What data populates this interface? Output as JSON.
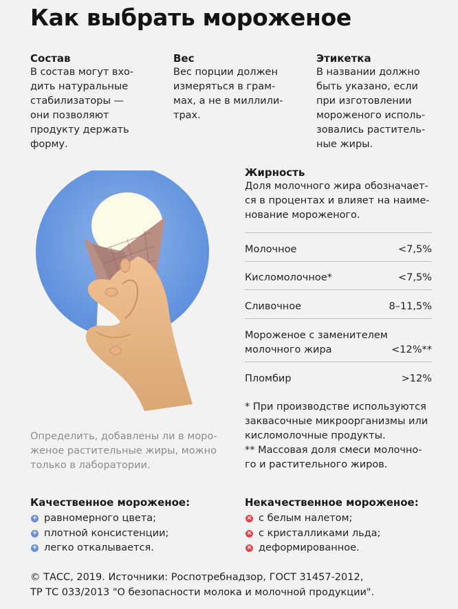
{
  "title": "Как выбрать мороженое",
  "columns": [
    {
      "heading": "Состав",
      "lines": [
        "В состав могут вхо-",
        "дить натуральные",
        "стабилизаторы —",
        "они позволяют",
        "продукту держать",
        "форму."
      ]
    },
    {
      "heading": "Вес",
      "lines": [
        "Вес порции должен",
        "измеряться в грам-",
        "мах, а не в миллили-",
        "трах."
      ]
    },
    {
      "heading": "Этикетка",
      "lines": [
        "В названии должно",
        "быть указано, если",
        "при изготовлении",
        "мороженого исполь-",
        "зовались раститель-",
        "ные жиры."
      ]
    }
  ],
  "fat": {
    "heading": "Жирность",
    "lines": [
      "Доля молочного жира обозначает-",
      "ся в процентах и влияет на наиме-",
      "нование мороженого."
    ],
    "rows": [
      {
        "name_lines": [
          "Молочное"
        ],
        "value": "<7,5%"
      },
      {
        "name_lines": [
          "Кисломолочное*"
        ],
        "value": "<7,5%"
      },
      {
        "name_lines": [
          "Сливочное"
        ],
        "value": "8–11,5%"
      },
      {
        "name_lines": [
          "Мороженое с заменителем",
          "молочного жира"
        ],
        "value": "<12%**"
      },
      {
        "name_lines": [
          "Пломбир"
        ],
        "value": ">12%"
      }
    ]
  },
  "notes": [
    "* При производстве используются",
    "заквасочные микроорганизмы или",
    "кисломолочные продукты.",
    "** Массовая доля смеси молочно-",
    "го и растительного жиров."
  ],
  "gray_note": [
    "Определить, добавлены ли в моро-",
    "женое растительные жиры, можно",
    "только в лаборатории."
  ],
  "good": {
    "heading": "Качественное мороженое:",
    "items": [
      "равномерного цвета;",
      "плотной консистенции;",
      "легко откалывается."
    ],
    "icon": "plus-icon",
    "color": "#6b8fd6"
  },
  "bad": {
    "heading": "Некачественное мороженое:",
    "items": [
      "с белым налетом;",
      "с кристалликами льда;",
      "деформированное."
    ],
    "icon": "cross-icon",
    "color": "#e0474c"
  },
  "footer": [
    "© ТАСС, 2019. Источники: Роспотребнадзор, ГОСТ 31457-2012,",
    "ТР ТС 033/2013 \"О безопасности молока и молочной продукции\"."
  ]
}
